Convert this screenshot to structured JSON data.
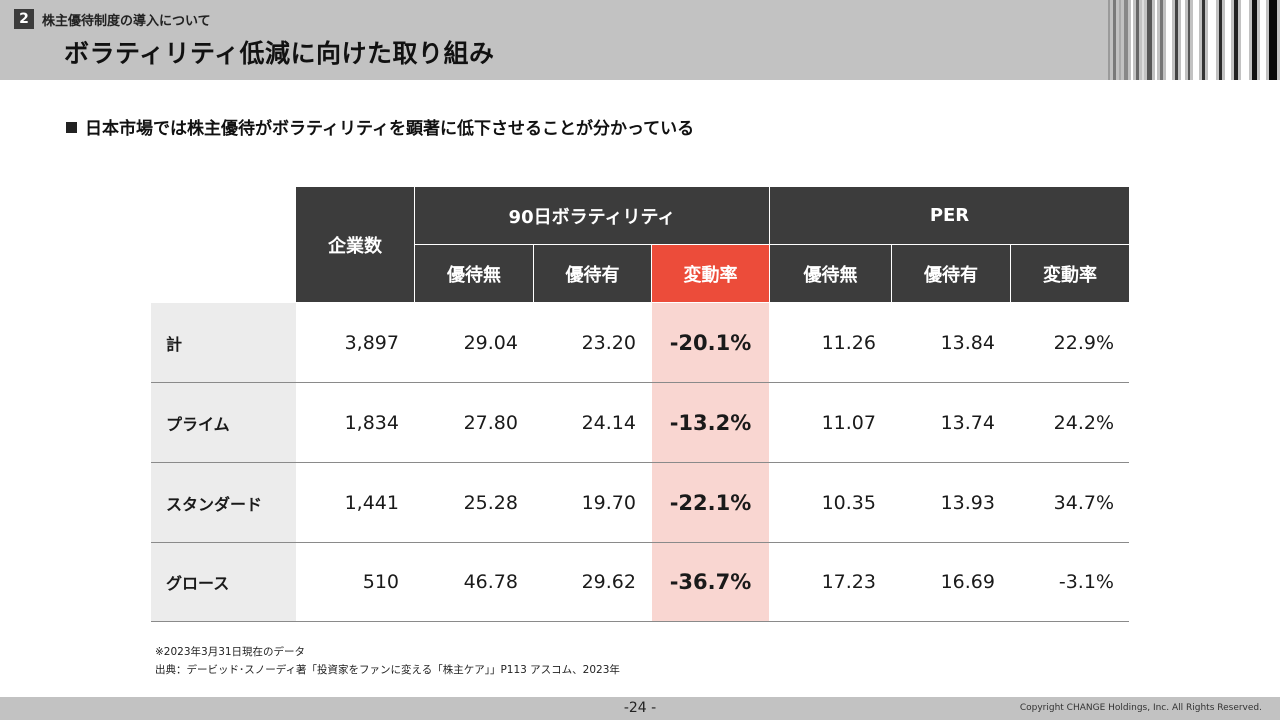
{
  "header": {
    "section_number": "2",
    "section_label": "株主優待制度の導入について",
    "title": "ボラティリティ低減に向けた取り組み"
  },
  "subtitle": "日本市場では株主優待がボラティリティを顕著に低下させることが分かっている",
  "table": {
    "col_companies": "企業数",
    "group_volatility": "90日ボラティリティ",
    "group_per": "PER",
    "sub_headers": [
      "優待無",
      "優待有",
      "変動率",
      "優待無",
      "優待有",
      "変動率"
    ],
    "rows": [
      {
        "label": "計",
        "companies": "3,897",
        "vol_without": "29.04",
        "vol_with": "23.20",
        "vol_change": "-20.1%",
        "per_without": "11.26",
        "per_with": "13.84",
        "per_change": "22.9%"
      },
      {
        "label": "プライム",
        "companies": "1,834",
        "vol_without": "27.80",
        "vol_with": "24.14",
        "vol_change": "-13.2%",
        "per_without": "11.07",
        "per_with": "13.74",
        "per_change": "24.2%"
      },
      {
        "label": "スタンダード",
        "companies": "1,441",
        "vol_without": "25.28",
        "vol_with": "19.70",
        "vol_change": "-22.1%",
        "per_without": "10.35",
        "per_with": "13.93",
        "per_change": "34.7%"
      },
      {
        "label": "グロース",
        "companies": "510",
        "vol_without": "46.78",
        "vol_with": "29.62",
        "vol_change": "-36.7%",
        "per_without": "17.23",
        "per_with": "16.69",
        "per_change": "-3.1%"
      }
    ]
  },
  "notes": [
    "※2023年3月31日現在のデータ",
    "出典：デービッド･スノーディ著「投資家をファンに変える「株主ケア」」P113 アスコム、2023年"
  ],
  "footer": {
    "page_number": "-24 -",
    "copyright": "Copyright CHANGE Holdings, Inc. All Rights Reserved."
  },
  "colors": {
    "header_gray": "#c2c2c2",
    "dark_header": "#3c3c3c",
    "accent_red": "#ec4c3a",
    "accent_pink": "#f9d6d1",
    "label_gray": "#ececec"
  }
}
